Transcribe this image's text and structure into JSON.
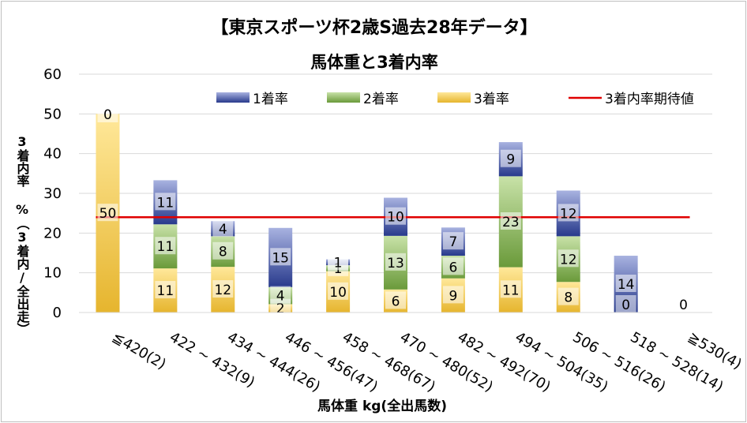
{
  "chart_data": {
    "type": "bar",
    "stacked": true,
    "title": "【東京スポーツ杯2歳S過去28年データ】",
    "subtitle": "馬体重と3着内率",
    "xlabel": "馬体重 kg(全出馬数)",
    "ylabel": "3着内率 %（3着内/全出走）",
    "ylim": [
      0,
      60
    ],
    "yticks": [
      "0",
      "10",
      "20",
      "30",
      "40",
      "50",
      "60"
    ],
    "grid": true,
    "legend_position": "top",
    "categories": [
      "≦420(2)",
      "422 ~ 432(9)",
      "434 ~ 444(26)",
      "446 ~ 456(47)",
      "458 ~ 468(67)",
      "470 ~ 480(52)",
      "482 ~ 492(70)",
      "494 ~ 504(35)",
      "506 ~ 516(26)",
      "518 ~ 528(14)",
      "≧530(4)"
    ],
    "series": [
      {
        "name": "3着率",
        "color": "#E6B52E",
        "values": [
          50,
          11.1,
          11.5,
          2.1,
          10.4,
          5.8,
          8.6,
          11.4,
          7.7,
          0,
          0
        ],
        "labels": [
          "50",
          "11",
          "12",
          "2",
          "10",
          "6",
          "9",
          "11",
          "8",
          "0",
          "0"
        ]
      },
      {
        "name": "2着率",
        "color": "#6A9A3A",
        "values": [
          0,
          11.1,
          7.7,
          4.3,
          1.5,
          13.5,
          5.7,
          22.9,
          11.5,
          0,
          0
        ],
        "labels": [
          "",
          "11",
          "8",
          "4",
          "1",
          "13",
          "6",
          "23",
          "12",
          "",
          ""
        ]
      },
      {
        "name": "1着率",
        "color": "#283A8C",
        "values": [
          0,
          11.1,
          3.8,
          14.9,
          1.5,
          9.6,
          7.1,
          8.6,
          11.5,
          14.3,
          0
        ],
        "labels": [
          "0",
          "11",
          "4",
          "15",
          "1",
          "10",
          "7",
          "9",
          "12",
          "14",
          ""
        ]
      }
    ],
    "reference_line": {
      "name": "3着内率期待値",
      "value": 24,
      "color": "#E00000"
    }
  }
}
